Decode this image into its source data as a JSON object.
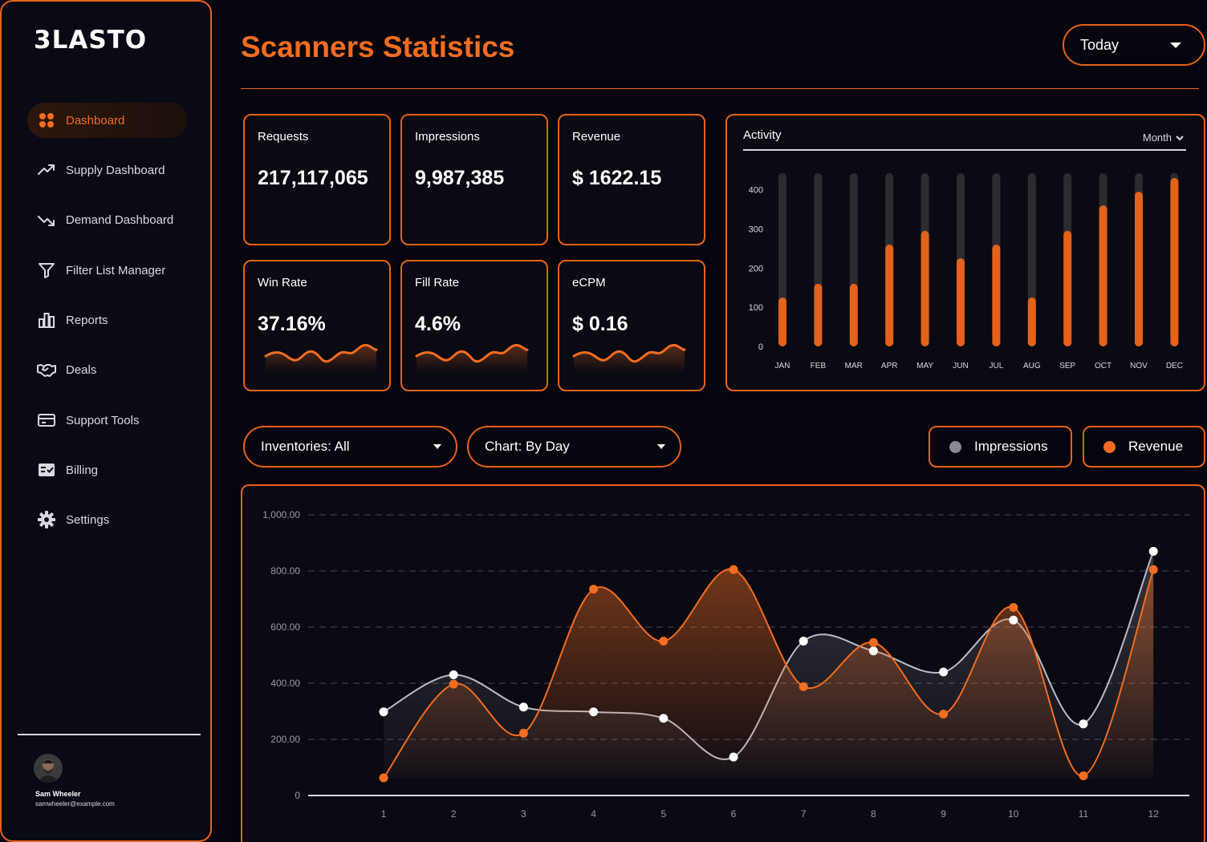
{
  "brand": {
    "logo_text": "3LASTO"
  },
  "sidebar": {
    "items": [
      {
        "label": "Dashboard",
        "icon": "dashboard-grid-icon",
        "active": true
      },
      {
        "label": "Supply Dashboard",
        "icon": "trend-up-icon"
      },
      {
        "label": "Demand Dashboard",
        "icon": "trend-down-icon"
      },
      {
        "label": "Filter List Manager",
        "icon": "filter-icon"
      },
      {
        "label": "Reports",
        "icon": "bar-chart-icon"
      },
      {
        "label": "Deals",
        "icon": "handshake-icon"
      },
      {
        "label": "Support Tools",
        "icon": "card-icon"
      },
      {
        "label": "Billing",
        "icon": "billing-icon"
      },
      {
        "label": "Settings",
        "icon": "gear-icon"
      }
    ],
    "user": {
      "name": "Sam Wheeler",
      "email": "samwheeler@example.com"
    }
  },
  "header": {
    "title": "Scanners Statistics",
    "period": "Today"
  },
  "stats": [
    {
      "label": "Requests",
      "value": "217,117,065"
    },
    {
      "label": "Impressions",
      "value": "9,987,385"
    },
    {
      "label": "Revenue",
      "value": "$ 1622.15"
    },
    {
      "label": "Win Rate",
      "value": "37.16%"
    },
    {
      "label": "Fill Rate",
      "value": "4.6%"
    },
    {
      "label": "eCPM",
      "value": "$ 0.16"
    }
  ],
  "activity": {
    "title": "Activity",
    "period": "Month"
  },
  "filters": {
    "inventories": "Inventories: All",
    "chart_mode": "Chart: By Day",
    "legend_impressions": "Impressions",
    "legend_revenue": "Revenue"
  },
  "colors": {
    "accent": "#f26d21",
    "border": "#e5621a",
    "background": "#05050d",
    "impressions": "#d8d8de",
    "bar_track": "#2c2c30"
  },
  "chart_data": [
    {
      "type": "bar",
      "categories": [
        "JAN",
        "FEB",
        "MAR",
        "APR",
        "MAY",
        "JUN",
        "JUL",
        "AUG",
        "SEP",
        "OCT",
        "NOV",
        "DEC"
      ],
      "values": [
        125,
        160,
        160,
        260,
        295,
        225,
        260,
        125,
        295,
        360,
        395,
        430
      ],
      "yticks": [
        "400",
        "300",
        "200",
        "100",
        "0"
      ],
      "ylim": [
        0,
        430
      ]
    },
    {
      "type": "area",
      "x": [
        1,
        2,
        3,
        4,
        5,
        6,
        7,
        8,
        9,
        10,
        11,
        12
      ],
      "series": [
        {
          "name": "Impressions",
          "values": [
            298,
            430,
            315,
            298,
            275,
            137,
            550,
            515,
            440,
            625,
            255,
            870
          ]
        },
        {
          "name": "Revenue",
          "values": [
            63,
            397,
            222,
            735,
            550,
            805,
            388,
            545,
            290,
            670,
            70,
            805
          ]
        }
      ],
      "yticks": [
        "1,000.00",
        "800.00",
        "600.00",
        "400.00",
        "200.00",
        "0"
      ],
      "ylim": [
        0,
        1000
      ]
    }
  ]
}
